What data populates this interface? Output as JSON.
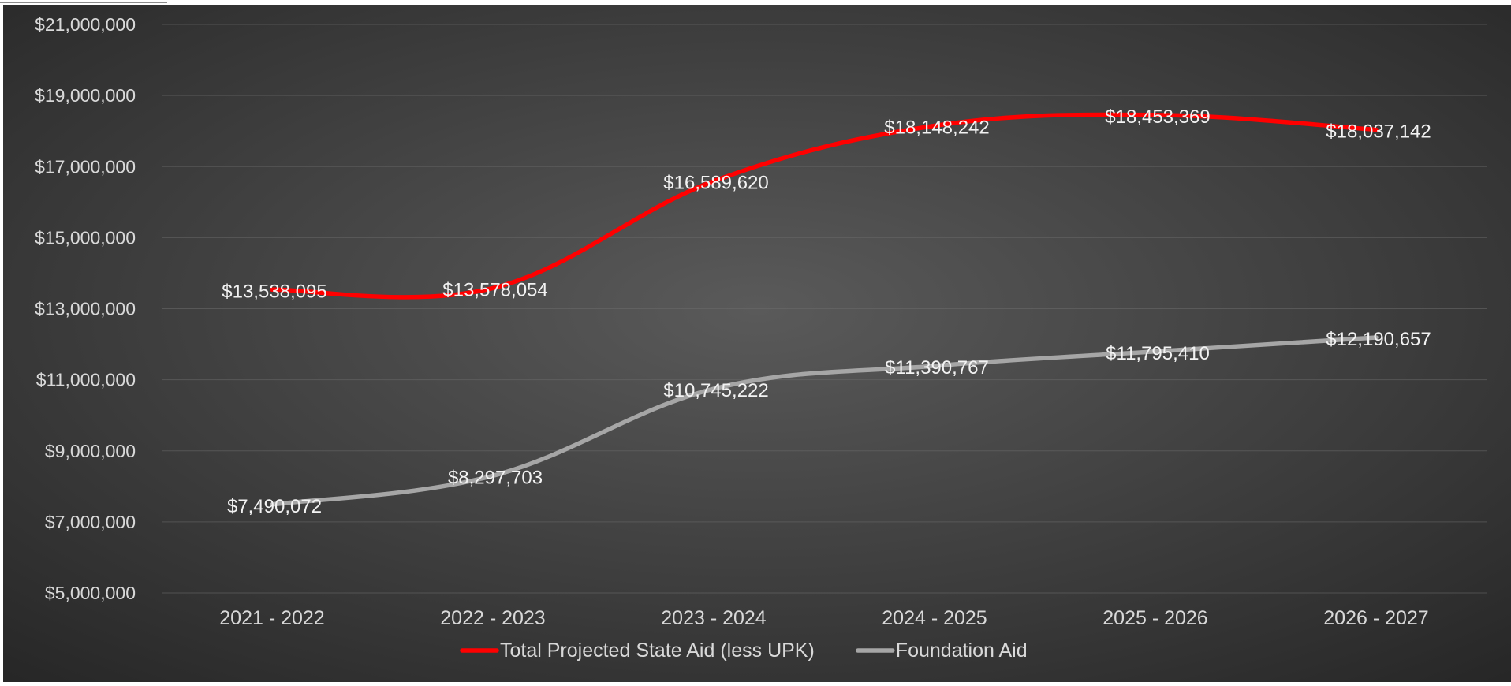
{
  "chart_data": {
    "type": "line",
    "categories": [
      "2021 - 2022",
      "2022 - 2023",
      "2023 - 2024",
      "2024 - 2025",
      "2025 - 2026",
      "2026 - 2027"
    ],
    "series": [
      {
        "name": "Total Projected State Aid (less UPK)",
        "color": "#ff0000",
        "values": [
          13538095,
          13578054,
          16589620,
          18148242,
          18453369,
          18037142
        ],
        "labels": [
          "$13,538,095",
          "$13,578,054",
          "$16,589,620",
          "$18,148,242",
          "$18,453,369",
          "$18,037,142"
        ]
      },
      {
        "name": "Foundation Aid",
        "color": "#a6a6a6",
        "values": [
          7490072,
          8297703,
          10745222,
          11390767,
          11795410,
          12190657
        ],
        "labels": [
          "$7,490,072",
          "$8,297,703",
          "$10,745,222",
          "$11,390,767",
          "$11,795,410",
          "$12,190,657"
        ]
      }
    ],
    "ylim": [
      5000000,
      21000000
    ],
    "yticks": [
      {
        "value": 5000000,
        "label": "$5,000,000"
      },
      {
        "value": 7000000,
        "label": "$7,000,000"
      },
      {
        "value": 9000000,
        "label": "$9,000,000"
      },
      {
        "value": 11000000,
        "label": "$11,000,000"
      },
      {
        "value": 13000000,
        "label": "$13,000,000"
      },
      {
        "value": 15000000,
        "label": "$15,000,000"
      },
      {
        "value": 17000000,
        "label": "$17,000,000"
      },
      {
        "value": 19000000,
        "label": "$19,000,000"
      },
      {
        "value": 21000000,
        "label": "$21,000,000"
      }
    ],
    "grid": true,
    "legend_position": "bottom",
    "background_colors": {
      "center": "#5a5a5a",
      "edge": "#262626"
    }
  }
}
